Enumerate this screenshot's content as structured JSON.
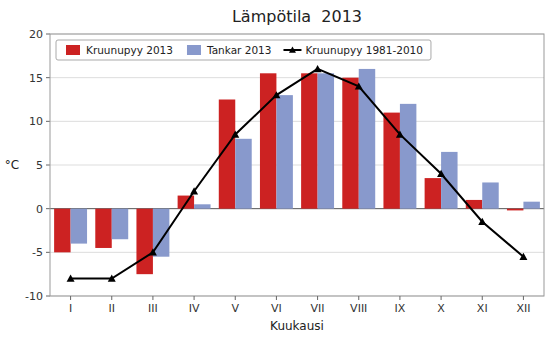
{
  "chart_data": {
    "type": "bar",
    "title": "Lämpötila  2013",
    "x_label": "Kuukausi",
    "y_label": "°C",
    "categories": [
      "I",
      "II",
      "III",
      "IV",
      "V",
      "VI",
      "VII",
      "VIII",
      "IX",
      "X",
      "XI",
      "XII"
    ],
    "series": [
      {
        "name": "Kruunupyy 2013",
        "type": "bar",
        "color": "#cc2222",
        "values": [
          -5.0,
          -4.5,
          -7.5,
          1.5,
          12.5,
          15.5,
          15.5,
          15.0,
          11.0,
          3.5,
          1.0,
          -0.2
        ]
      },
      {
        "name": "Tankar 2013",
        "type": "bar",
        "color": "#8899cc",
        "values": [
          -4.0,
          -3.5,
          -5.5,
          0.5,
          8.0,
          13.0,
          15.5,
          16.0,
          12.0,
          6.5,
          3.0,
          0.8
        ]
      },
      {
        "name": "Kruunupyy 1981-2010",
        "type": "line",
        "color": "#000000",
        "marker": "triangle",
        "line_style": "solid",
        "values": [
          -8.0,
          -8.0,
          -5.0,
          2.0,
          8.5,
          13.0,
          16.0,
          14.0,
          8.5,
          4.0,
          -1.5,
          -5.5
        ]
      }
    ],
    "ylim": [
      -10,
      20
    ],
    "yticks": [
      -10,
      -5,
      0,
      5,
      10,
      15,
      20
    ],
    "grid": true,
    "legend": "upper left"
  }
}
